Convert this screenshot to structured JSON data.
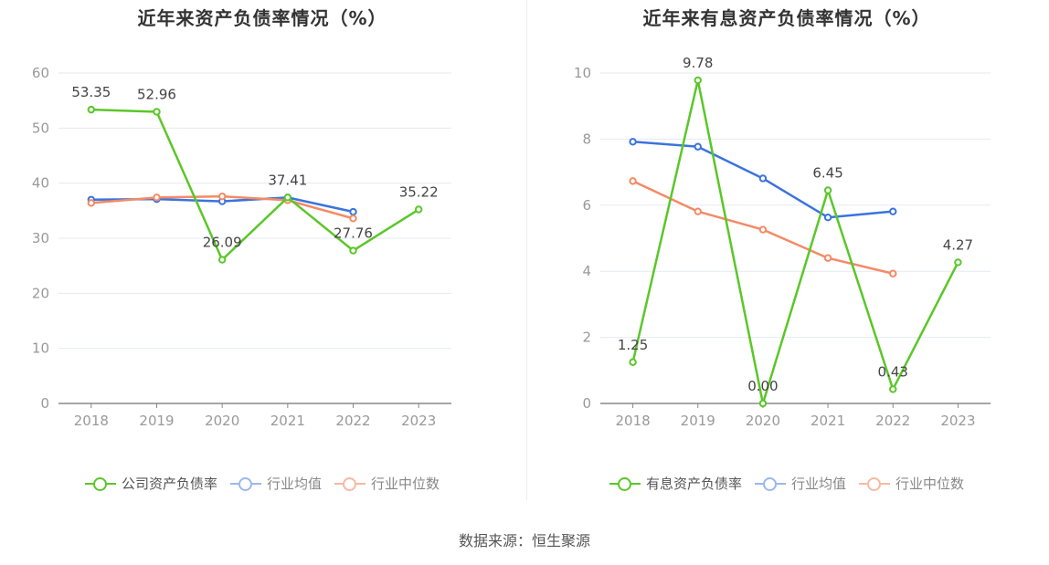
{
  "footer": {
    "source": "数据来源：恒生聚源"
  },
  "colors": {
    "company": "#5ac728",
    "avg": "#3b73de",
    "median": "#f48a65",
    "grid": "#e6e9f2",
    "axis": "#888888"
  },
  "chart_data": [
    {
      "type": "line",
      "title": "近年来资产负债率情况（%）",
      "categories": [
        "2018",
        "2019",
        "2020",
        "2021",
        "2022",
        "2023"
      ],
      "ylim": [
        0,
        60
      ],
      "yticks": [
        0,
        10,
        20,
        30,
        40,
        50,
        60
      ],
      "grid": true,
      "legend_position": "bottom",
      "series": [
        {
          "name": "公司资产负债率",
          "values": [
            53.35,
            52.96,
            26.09,
            37.41,
            27.76,
            35.22
          ],
          "labels": [
            "53.35",
            "52.96",
            "26.09",
            "37.41",
            "27.76",
            "35.22"
          ]
        },
        {
          "name": "行业均值",
          "values": [
            37.0,
            37.1,
            36.7,
            37.4,
            34.8,
            null
          ]
        },
        {
          "name": "行业中位数",
          "values": [
            36.4,
            37.4,
            37.6,
            36.9,
            33.6,
            null
          ]
        }
      ]
    },
    {
      "type": "line",
      "title": "近年来有息资产负债率情况（%）",
      "categories": [
        "2018",
        "2019",
        "2020",
        "2021",
        "2022",
        "2023"
      ],
      "ylim": [
        0,
        10
      ],
      "yticks": [
        0,
        2,
        4,
        6,
        8,
        10
      ],
      "grid": true,
      "legend_position": "bottom",
      "series": [
        {
          "name": "有息资产负债率",
          "values": [
            1.25,
            9.78,
            0.0,
            6.45,
            0.43,
            4.27
          ],
          "labels": [
            "1.25",
            "9.78",
            "0.00",
            "6.45",
            "0.43",
            "4.27"
          ]
        },
        {
          "name": "行业均值",
          "values": [
            7.92,
            7.77,
            6.81,
            5.63,
            5.81,
            null
          ]
        },
        {
          "name": "行业中位数",
          "values": [
            6.73,
            5.81,
            5.26,
            4.4,
            3.93,
            null
          ]
        }
      ]
    }
  ]
}
